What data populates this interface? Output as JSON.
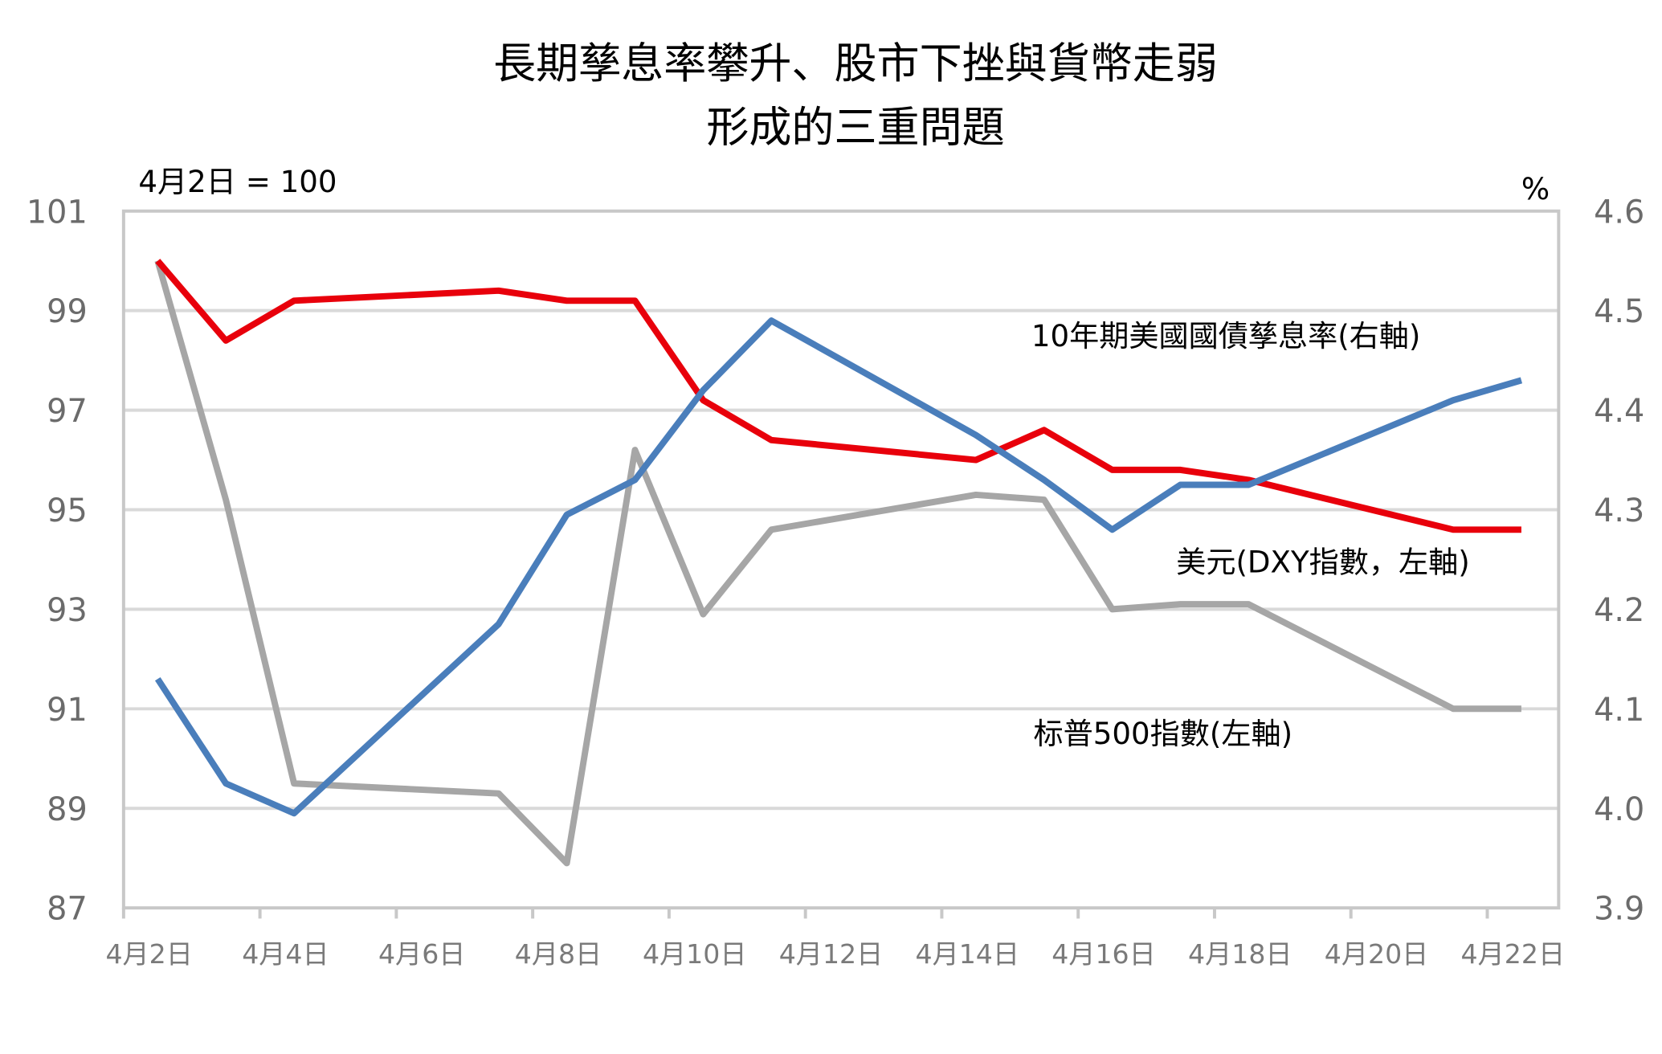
{
  "chart_data": {
    "type": "line",
    "title": [
      "長期孳息率攀升、股市下挫與貨幣走弱",
      "形成的三重問題"
    ],
    "left_axis": {
      "label": "4月2日 = 100",
      "ylim": [
        87,
        101
      ],
      "ticks": [
        "101",
        "99",
        "97",
        "95",
        "93",
        "91",
        "89",
        "87"
      ]
    },
    "right_axis": {
      "label": "%",
      "ylim": [
        3.9,
        4.6
      ],
      "ticks": [
        "4.6",
        "4.5",
        "4.4",
        "4.3",
        "4.2",
        "4.1",
        "4.0",
        "3.9"
      ]
    },
    "x_tick_labels": [
      "4月2日",
      "4月4日",
      "4月6日",
      "4月8日",
      "4月10日",
      "4月12日",
      "4月14日",
      "4月16日",
      "4月18日",
      "4月20日",
      "4月22日"
    ],
    "x_tick_days": [
      2,
      4,
      6,
      8,
      10,
      12,
      14,
      16,
      18,
      20,
      22
    ],
    "x_days": [
      2,
      3,
      4,
      7,
      8,
      9,
      10,
      11,
      14,
      15,
      16,
      17,
      18,
      21,
      22
    ],
    "grid": true,
    "series": [
      {
        "name": "10年期美國國債孳息率(右軸)",
        "axis": "right",
        "color": "#e8000b",
        "values": [
          4.55,
          4.47,
          4.51,
          4.52,
          4.51,
          4.51,
          4.41,
          4.37,
          4.35,
          4.38,
          4.34,
          4.34,
          4.33,
          4.28,
          4.28
        ]
      },
      {
        "name": "美元(DXY指數，左軸)",
        "axis": "left",
        "color": "#4a7ebb",
        "values": [
          91.6,
          89.5,
          88.9,
          92.7,
          94.9,
          95.6,
          97.4,
          98.8,
          96.5,
          95.6,
          94.6,
          95.5,
          95.5,
          97.2,
          97.6
        ]
      },
      {
        "name": "标普500指數(左軸)",
        "axis": "left",
        "color": "#a6a6a6",
        "values": [
          100,
          95.2,
          89.5,
          89.3,
          87.9,
          96.2,
          92.9,
          94.6,
          95.3,
          95.2,
          93.0,
          93.1,
          93.1,
          91.0,
          91.0
        ]
      }
    ]
  }
}
